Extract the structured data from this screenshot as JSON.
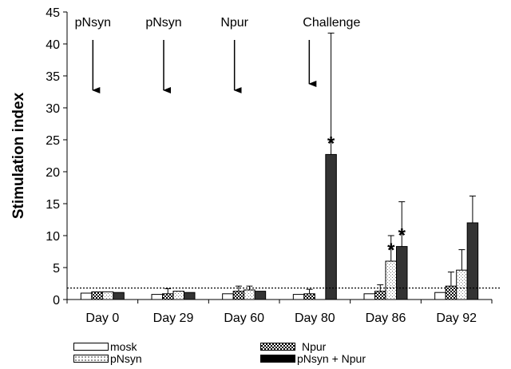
{
  "chart_data": {
    "type": "bar",
    "ylabel": "Stimulation index",
    "xlabel": "",
    "ylim": [
      0,
      45
    ],
    "yticks": [
      0,
      5,
      10,
      15,
      20,
      25,
      30,
      35,
      40,
      45
    ],
    "categories": [
      "Day 0",
      "Day 29",
      "Day 60",
      "Day 80",
      "Day 86",
      "Day 92"
    ],
    "series": [
      {
        "name": "mosk",
        "values": [
          1.0,
          0.8,
          0.9,
          0.8,
          0.9,
          1.1
        ],
        "error": [
          0,
          0,
          0,
          0,
          0,
          0
        ],
        "pattern": "white",
        "legend_label": "mosk"
      },
      {
        "name": "Npur",
        "values": [
          1.2,
          0.9,
          1.3,
          0.9,
          1.3,
          2.1
        ],
        "error": [
          0,
          0.8,
          0.8,
          0.7,
          1.0,
          2.2
        ],
        "pattern": "checker",
        "legend_label": "Npur"
      },
      {
        "name": "pNsyn",
        "values": [
          1.2,
          1.3,
          1.5,
          0,
          6.0,
          4.6
        ],
        "error": [
          0,
          0,
          0.6,
          0,
          4.0,
          3.2
        ],
        "pattern": "dots",
        "legend_label": "pNsyn"
      },
      {
        "name": "pNsyn + Npur",
        "values": [
          1.1,
          1.1,
          1.3,
          22.7,
          8.3,
          12.0
        ],
        "error": [
          0,
          0,
          0,
          19.0,
          7.0,
          4.2
        ],
        "pattern": "dark",
        "legend_label": "pNsyn + Npur"
      }
    ],
    "reference_line": {
      "value": 1.8,
      "style": "dotted"
    },
    "significance": [
      {
        "category": "Day 80",
        "series": "pNsyn + Npur",
        "label": "*"
      },
      {
        "category": "Day 86",
        "series": "pNsyn",
        "label": "*"
      },
      {
        "category": "Day 86",
        "series": "pNsyn + Npur",
        "label": "*"
      }
    ],
    "annotations": [
      {
        "text": "pNsyn",
        "category": "Day 0",
        "arrow_to": 31.5
      },
      {
        "text": "pNsyn",
        "category": "Day 29",
        "arrow_to": 31.5
      },
      {
        "text": "Npur",
        "category": "Day 60",
        "arrow_to": 31.5
      },
      {
        "text": "Challenge",
        "category": "Day 80",
        "arrow_to": 32.5
      }
    ],
    "legend_position": "bottom",
    "colors": {
      "dark": "#333333",
      "axis": "#000000",
      "white": "#ffffff"
    }
  }
}
